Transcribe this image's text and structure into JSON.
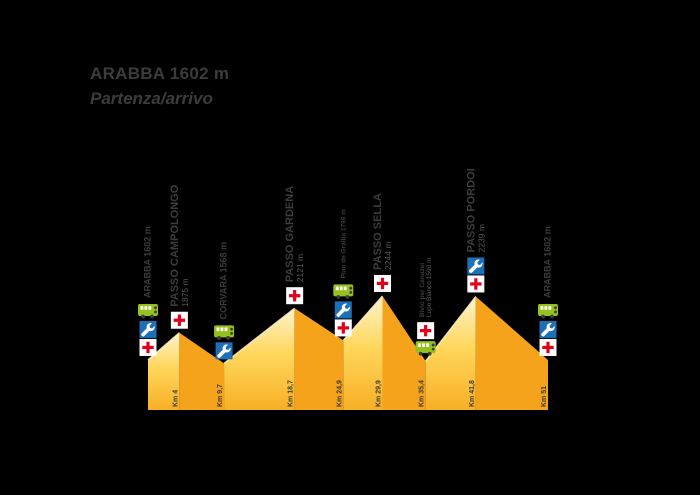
{
  "header": {
    "title": "ARABBA 1602 m",
    "subtitle": "Partenza/arrivo"
  },
  "colors": {
    "background": "#000000",
    "ascent_top": "#FFF3CC",
    "ascent_mid": "#FFD75C",
    "ascent_bottom": "#F8AF25",
    "descent": "#F5A31B",
    "ridge_highlight": "#FFF3CE",
    "label_dark": "#3C3C3B",
    "label_gray": "#575756",
    "km_text": "#3B3B3A",
    "medical_red": "#E2001A",
    "mechanic_blue": "#1D70B7",
    "bus_green": "#95C11F",
    "title_text": "#3C3C3B"
  },
  "icons_legend": {
    "medical": "first-aid-cross-icon",
    "mechanic": "wrench-icon",
    "bus": "shuttle-bus-icon"
  },
  "chart_data": {
    "type": "area",
    "title": "ARABBA 1602 m",
    "subtitle": "Partenza/arrivo",
    "x_unit": "km",
    "y_unit": "m",
    "x_range": [
      0,
      51
    ],
    "baseline_elevation": 1100,
    "points": [
      {
        "name": "ARABBA",
        "elevation": 1602,
        "km": 0,
        "km_label": "",
        "label_lines": [
          "ARABBA 1602 m"
        ],
        "label_style": "medium",
        "services": [
          "bus",
          "mechanic",
          "medical"
        ]
      },
      {
        "name": "PASSO CAMPOLONGO",
        "elevation": 1875,
        "km": 4,
        "km_label": "Km 4",
        "label_lines": [
          "PASSO CAMPOLONGO",
          "1875 m"
        ],
        "label_style": "major",
        "services": [
          "medical"
        ]
      },
      {
        "name": "CORVARA",
        "elevation": 1568,
        "km": 9.7,
        "km_label": "Km 9,7",
        "label_lines": [
          "CORVARA 1568 m"
        ],
        "label_style": "medium",
        "services": [
          "bus",
          "mechanic"
        ]
      },
      {
        "name": "PASSO GARDENA",
        "elevation": 2121,
        "km": 18.7,
        "km_label": "Km 18,7",
        "label_lines": [
          "PASSO GARDENA",
          "2121 m"
        ],
        "label_style": "major",
        "services": [
          "medical"
        ]
      },
      {
        "name": "PLAN DE GRALBA",
        "elevation": 1798,
        "km": 24.9,
        "km_label": "Km 24,9",
        "label_lines": [
          "Plan de Gralba 1798 m"
        ],
        "label_style": "small",
        "services": [
          "bus",
          "mechanic",
          "medical"
        ]
      },
      {
        "name": "PASSO SELLA",
        "elevation": 2244,
        "km": 29.9,
        "km_label": "Km 29,9",
        "label_lines": [
          "PASSO SELLA",
          "2244 m"
        ],
        "label_style": "major",
        "services": [
          "medical"
        ]
      },
      {
        "name": "BIVIO LUPO BIANCO",
        "elevation": 1590,
        "km": 35.4,
        "km_label": "Km 35,4",
        "label_lines": [
          "Bivio per Canazei",
          "Lupo Bianco 1590 m"
        ],
        "label_style": "small",
        "services": [
          "medical",
          "bus"
        ]
      },
      {
        "name": "PASSO PORDOI",
        "elevation": 2239,
        "km": 41.8,
        "km_label": "Km 41,8",
        "label_lines": [
          "PASSO PORDOI",
          "2239 m"
        ],
        "label_style": "major",
        "services": [
          "mechanic",
          "medical"
        ]
      },
      {
        "name": "ARABBA",
        "elevation": 1602,
        "km": 51,
        "km_label": "Km 51",
        "label_lines": [
          "ARABBA 1602 m"
        ],
        "label_style": "medium",
        "services": [
          "bus",
          "mechanic",
          "medical"
        ]
      }
    ]
  }
}
